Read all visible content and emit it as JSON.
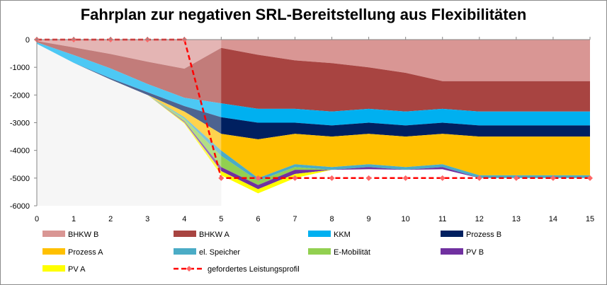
{
  "chart_data": {
    "type": "area",
    "title": "Fahrplan zur negativen SRL-Bereitstellung aus Flexibilitäten",
    "x": [
      0,
      1,
      2,
      3,
      4,
      5,
      6,
      7,
      8,
      9,
      10,
      11,
      12,
      13,
      14,
      15
    ],
    "xlim": [
      0,
      15
    ],
    "ylim": [
      -6000,
      0
    ],
    "yticks": [
      0,
      -1000,
      -2000,
      -3000,
      -4000,
      -5000,
      -6000
    ],
    "xticks": [
      0,
      1,
      2,
      3,
      4,
      5,
      6,
      7,
      8,
      9,
      10,
      11,
      12,
      13,
      14,
      15
    ],
    "grid": false,
    "legend_position": "bottom",
    "shaded_region": [
      0,
      5
    ],
    "series": [
      {
        "name": "BHKW B",
        "color": "#d99694",
        "values": [
          -50,
          -280,
          -520,
          -800,
          -1050,
          -300,
          -550,
          -750,
          -850,
          -1000,
          -1200,
          -1500,
          -1500,
          -1500,
          -1500,
          -1500
        ]
      },
      {
        "name": "BHKW A",
        "color": "#a84441",
        "values": [
          -50,
          -280,
          -520,
          -800,
          -1050,
          -2000,
          -1950,
          -1750,
          -1750,
          -1500,
          -1400,
          -1000,
          -1100,
          -1100,
          -1100,
          -1100
        ]
      },
      {
        "name": "KKM",
        "color": "#00b0f0",
        "values": [
          -50,
          -280,
          -360,
          -300,
          -300,
          -500,
          -500,
          -500,
          -500,
          -500,
          -500,
          -500,
          -500,
          -500,
          -500,
          -500
        ]
      },
      {
        "name": "Prozess B",
        "color": "#002060",
        "values": [
          0,
          0,
          -40,
          -100,
          -200,
          -600,
          -600,
          -400,
          -400,
          -400,
          -400,
          -400,
          -400,
          -400,
          -400,
          -400
        ]
      },
      {
        "name": "Prozess A",
        "color": "#ffc000",
        "values": [
          0,
          0,
          0,
          0,
          -200,
          -600,
          -1400,
          -1100,
          -1100,
          -1100,
          -1100,
          -1100,
          -1400,
          -1400,
          -1400,
          -1400
        ]
      },
      {
        "name": "el. Speicher",
        "color": "#4bacc6",
        "values": [
          0,
          0,
          0,
          0,
          -60,
          -200,
          -100,
          -100,
          -100,
          -100,
          -100,
          -100,
          -100,
          -100,
          -100,
          -100
        ]
      },
      {
        "name": "E-Mobilität",
        "color": "#92d050",
        "values": [
          0,
          0,
          0,
          0,
          -90,
          -400,
          -150,
          -100,
          0,
          0,
          0,
          0,
          0,
          0,
          0,
          0
        ]
      },
      {
        "name": "PV B",
        "color": "#7030a0",
        "values": [
          0,
          0,
          0,
          0,
          -40,
          -150,
          -150,
          -150,
          0,
          -80,
          0,
          -80,
          0,
          0,
          0,
          0
        ]
      },
      {
        "name": "PV A",
        "color": "#ffff00",
        "values": [
          0,
          0,
          0,
          0,
          -40,
          -150,
          -150,
          -150,
          0,
          0,
          0,
          0,
          0,
          0,
          0,
          0
        ]
      }
    ],
    "target_line": {
      "name": "gefordertes Leistungsprofil",
      "color": "#ff0000",
      "marker_color": "#ff6666",
      "values": [
        0,
        0,
        0,
        0,
        0,
        -5000,
        -5000,
        -5000,
        -5000,
        -5000,
        -5000,
        -5000,
        -5000,
        -5000,
        -5000,
        -5000
      ]
    }
  }
}
